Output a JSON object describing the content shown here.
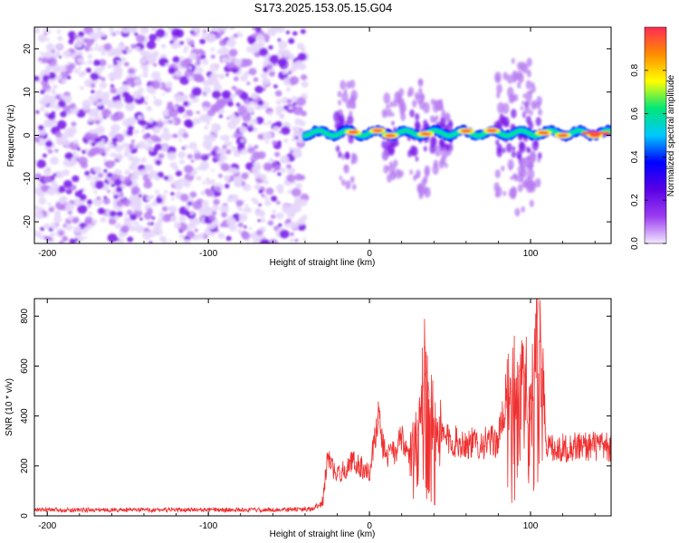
{
  "figure_title": "S173.2025.153.05.15.G04",
  "chart_data": [
    {
      "type": "heatmap",
      "xlabel": "Height of straight line (km)",
      "ylabel": "Frequency (Hz)",
      "xlim": [
        -208,
        150
      ],
      "ylim": [
        -25,
        25
      ],
      "xticks": [
        -200,
        -100,
        0,
        100
      ],
      "yticks": [
        -20,
        -10,
        0,
        10,
        20
      ],
      "grid": false,
      "colorbar": {
        "label": "Normalized spectral amplitude",
        "range": [
          0,
          1
        ],
        "ticks": [
          0.0,
          0.2,
          0.4,
          0.6,
          0.8
        ],
        "colormap": [
          "#f2e8ff",
          "#9b3cf0",
          "#5a00e6",
          "#0000ff",
          "#00c8ff",
          "#00e676",
          "#ffff00",
          "#ff8c00",
          "#ff2a55"
        ]
      },
      "noise_region": {
        "x_range": [
          -208,
          -40
        ],
        "freq_range": [
          -25,
          25
        ],
        "amplitude": 0.05
      },
      "signal_ridge": {
        "x_range": [
          -40,
          150
        ],
        "freq_center": 0.5,
        "peak_amplitude": 0.95,
        "bright_spots_x": [
          -10,
          5,
          13,
          35,
          60,
          76,
          108,
          120,
          140
        ]
      }
    },
    {
      "type": "line",
      "xlabel": "Height of straight line (km)",
      "ylabel": "SNR (10 * v/v)",
      "xlim": [
        -208,
        150
      ],
      "ylim": [
        0,
        870
      ],
      "xticks": [
        -200,
        -100,
        0,
        100
      ],
      "yticks": [
        0,
        200,
        400,
        600,
        800
      ],
      "grid": false,
      "color": "#f03030",
      "series": [
        {
          "x": [
            -208,
            -180,
            -150,
            -120,
            -90,
            -60,
            -35,
            -29,
            -26,
            -20,
            -10,
            0,
            5,
            10,
            15,
            20,
            25,
            30,
            35,
            40,
            45,
            50,
            60,
            70,
            80,
            85,
            90,
            95,
            100,
            105,
            110,
            120,
            130,
            140,
            150
          ],
          "y": [
            25,
            25,
            25,
            25,
            25,
            25,
            28,
            60,
            230,
            160,
            220,
            170,
            400,
            240,
            250,
            300,
            230,
            340,
            600,
            360,
            320,
            300,
            290,
            290,
            300,
            480,
            510,
            620,
            380,
            870,
            280,
            270,
            280,
            280,
            270
          ]
        }
      ]
    }
  ]
}
